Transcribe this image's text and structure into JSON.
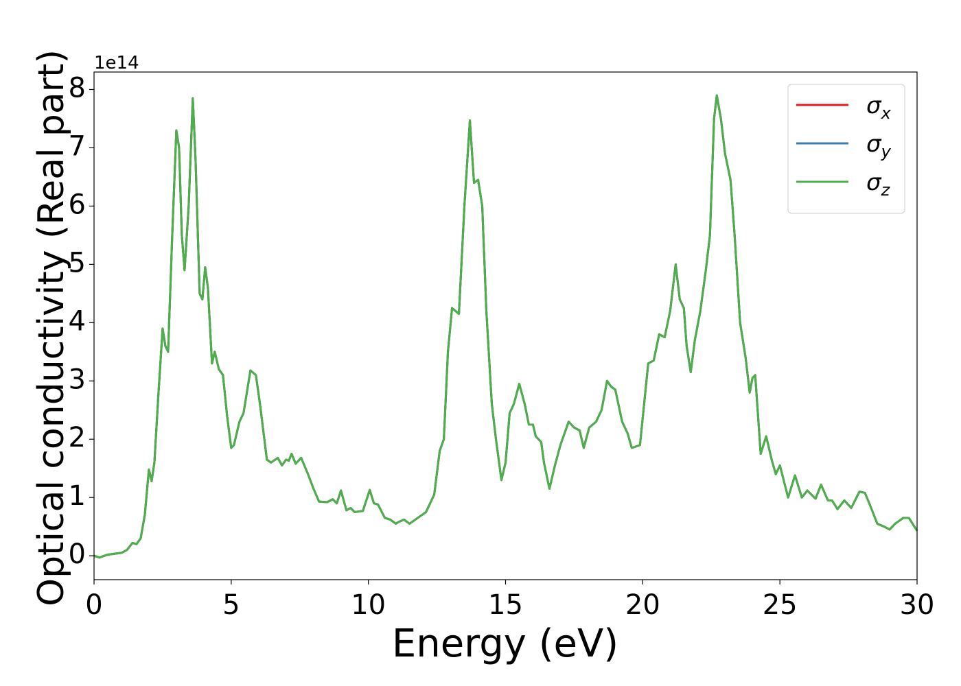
{
  "chart_data": {
    "type": "line",
    "x_label": "Energy (eV)",
    "y_label": "Optical conductivity (Real part)",
    "y_offset_text": "1e14",
    "xlim": [
      0,
      30
    ],
    "xticks": [
      0,
      5,
      10,
      15,
      20,
      25,
      30
    ],
    "ylim": [
      -0.41,
      8.3
    ],
    "yticks": [
      0,
      1,
      2,
      3,
      4,
      5,
      6,
      7,
      8
    ],
    "legend": "upper right",
    "x": [
      0.0,
      0.2,
      0.5,
      1.0,
      1.2,
      1.4,
      1.55,
      1.7,
      1.85,
      2.0,
      2.1,
      2.2,
      2.35,
      2.5,
      2.6,
      2.7,
      2.85,
      3.0,
      3.1,
      3.2,
      3.3,
      3.45,
      3.6,
      3.7,
      3.85,
      3.95,
      4.05,
      4.15,
      4.3,
      4.4,
      4.55,
      4.7,
      4.85,
      5.0,
      5.1,
      5.3,
      5.45,
      5.7,
      5.9,
      6.05,
      6.3,
      6.45,
      6.7,
      6.85,
      7.0,
      7.1,
      7.2,
      7.35,
      7.55,
      7.8,
      8.0,
      8.2,
      8.5,
      8.7,
      8.85,
      9.0,
      9.2,
      9.35,
      9.5,
      9.8,
      10.05,
      10.2,
      10.35,
      10.6,
      10.8,
      11.0,
      11.1,
      11.3,
      11.5,
      11.8,
      12.1,
      12.4,
      12.6,
      12.75,
      12.9,
      13.05,
      13.3,
      13.5,
      13.7,
      13.85,
      14.0,
      14.15,
      14.3,
      14.5,
      14.65,
      14.85,
      15.0,
      15.15,
      15.3,
      15.5,
      15.7,
      15.85,
      16.0,
      16.1,
      16.3,
      16.4,
      16.6,
      16.8,
      17.0,
      17.3,
      17.5,
      17.7,
      17.85,
      18.05,
      18.3,
      18.5,
      18.7,
      18.85,
      19.0,
      19.25,
      19.45,
      19.6,
      19.9,
      20.2,
      20.4,
      20.6,
      20.8,
      21.0,
      21.2,
      21.35,
      21.5,
      21.6,
      21.75,
      21.9,
      22.1,
      22.3,
      22.45,
      22.6,
      22.7,
      22.85,
      23.0,
      23.2,
      23.35,
      23.55,
      23.75,
      23.9,
      24.0,
      24.1,
      24.3,
      24.5,
      24.7,
      24.85,
      25.0,
      25.3,
      25.55,
      25.8,
      26.0,
      26.3,
      26.5,
      26.75,
      26.9,
      27.1,
      27.35,
      27.6,
      27.9,
      28.1,
      28.3,
      28.55,
      28.8,
      29.0,
      29.2,
      29.5,
      29.7,
      30.0
    ],
    "series": [
      {
        "name": "σx",
        "color": "#e41a1c",
        "values": [
          0.0,
          -0.03,
          0.02,
          0.05,
          0.1,
          0.22,
          0.2,
          0.3,
          0.7,
          1.48,
          1.28,
          1.6,
          2.8,
          3.9,
          3.6,
          3.5,
          5.5,
          7.3,
          7.0,
          5.5,
          4.9,
          6.0,
          7.85,
          6.8,
          4.5,
          4.4,
          4.95,
          4.6,
          3.3,
          3.5,
          3.2,
          3.1,
          2.4,
          1.85,
          1.9,
          2.3,
          2.45,
          3.18,
          3.1,
          2.6,
          1.65,
          1.6,
          1.68,
          1.55,
          1.65,
          1.63,
          1.75,
          1.58,
          1.68,
          1.4,
          1.15,
          0.93,
          0.92,
          0.97,
          0.9,
          1.12,
          0.78,
          0.82,
          0.75,
          0.77,
          1.13,
          0.9,
          0.88,
          0.65,
          0.62,
          0.55,
          0.58,
          0.62,
          0.55,
          0.65,
          0.75,
          1.05,
          1.8,
          2.0,
          3.5,
          4.25,
          4.15,
          6.0,
          7.47,
          6.4,
          6.45,
          6.0,
          4.2,
          2.6,
          2.0,
          1.3,
          1.6,
          2.45,
          2.6,
          2.95,
          2.6,
          2.25,
          2.25,
          2.05,
          1.95,
          1.6,
          1.15,
          1.55,
          1.9,
          2.3,
          2.2,
          2.15,
          1.85,
          2.2,
          2.3,
          2.5,
          3.0,
          2.9,
          2.85,
          2.3,
          2.1,
          1.85,
          1.9,
          3.3,
          3.35,
          3.8,
          3.75,
          4.2,
          5.0,
          4.4,
          4.25,
          3.6,
          3.15,
          3.7,
          4.2,
          4.9,
          5.5,
          7.5,
          7.9,
          7.5,
          6.9,
          6.45,
          5.5,
          4.0,
          3.4,
          2.8,
          3.05,
          3.1,
          1.75,
          2.05,
          1.65,
          1.4,
          1.55,
          1.0,
          1.38,
          1.0,
          1.12,
          0.98,
          1.22,
          0.95,
          0.95,
          0.8,
          0.95,
          0.82,
          1.1,
          1.08,
          0.85,
          0.55,
          0.5,
          0.45,
          0.55,
          0.65,
          0.65,
          0.43
        ]
      },
      {
        "name": "σy",
        "color": "#377eb8",
        "values": [
          0.0,
          -0.03,
          0.02,
          0.05,
          0.1,
          0.22,
          0.2,
          0.3,
          0.7,
          1.48,
          1.28,
          1.6,
          2.8,
          3.9,
          3.6,
          3.5,
          5.5,
          7.3,
          7.0,
          5.5,
          4.9,
          6.0,
          7.85,
          6.8,
          4.5,
          4.4,
          4.95,
          4.6,
          3.3,
          3.5,
          3.2,
          3.1,
          2.4,
          1.85,
          1.9,
          2.3,
          2.45,
          3.18,
          3.1,
          2.6,
          1.65,
          1.6,
          1.68,
          1.55,
          1.65,
          1.63,
          1.75,
          1.58,
          1.68,
          1.4,
          1.15,
          0.93,
          0.92,
          0.97,
          0.9,
          1.12,
          0.78,
          0.82,
          0.75,
          0.77,
          1.13,
          0.9,
          0.88,
          0.65,
          0.62,
          0.55,
          0.58,
          0.62,
          0.55,
          0.65,
          0.75,
          1.05,
          1.8,
          2.0,
          3.5,
          4.25,
          4.15,
          6.0,
          7.47,
          6.4,
          6.45,
          6.0,
          4.2,
          2.6,
          2.0,
          1.3,
          1.6,
          2.45,
          2.6,
          2.95,
          2.6,
          2.25,
          2.25,
          2.05,
          1.95,
          1.6,
          1.15,
          1.55,
          1.9,
          2.3,
          2.2,
          2.15,
          1.85,
          2.2,
          2.3,
          2.5,
          3.0,
          2.9,
          2.85,
          2.3,
          2.1,
          1.85,
          1.9,
          3.3,
          3.35,
          3.8,
          3.75,
          4.2,
          5.0,
          4.4,
          4.25,
          3.6,
          3.15,
          3.7,
          4.2,
          4.9,
          5.5,
          7.5,
          7.9,
          7.5,
          6.9,
          6.45,
          5.5,
          4.0,
          3.4,
          2.8,
          3.05,
          3.1,
          1.75,
          2.05,
          1.65,
          1.4,
          1.55,
          1.0,
          1.38,
          1.0,
          1.12,
          0.98,
          1.22,
          0.95,
          0.95,
          0.8,
          0.95,
          0.82,
          1.1,
          1.08,
          0.85,
          0.55,
          0.5,
          0.45,
          0.55,
          0.65,
          0.65,
          0.43
        ]
      },
      {
        "name": "σz",
        "color": "#4daf4a",
        "values": [
          0.0,
          -0.03,
          0.02,
          0.05,
          0.1,
          0.22,
          0.2,
          0.3,
          0.7,
          1.48,
          1.28,
          1.6,
          2.8,
          3.9,
          3.6,
          3.5,
          5.5,
          7.3,
          7.0,
          5.5,
          4.9,
          6.0,
          7.85,
          6.8,
          4.5,
          4.4,
          4.95,
          4.6,
          3.3,
          3.5,
          3.2,
          3.1,
          2.4,
          1.85,
          1.9,
          2.3,
          2.45,
          3.18,
          3.1,
          2.6,
          1.65,
          1.6,
          1.68,
          1.55,
          1.65,
          1.63,
          1.75,
          1.58,
          1.68,
          1.4,
          1.15,
          0.93,
          0.92,
          0.97,
          0.9,
          1.12,
          0.78,
          0.82,
          0.75,
          0.77,
          1.13,
          0.9,
          0.88,
          0.65,
          0.62,
          0.55,
          0.58,
          0.62,
          0.55,
          0.65,
          0.75,
          1.05,
          1.8,
          2.0,
          3.5,
          4.25,
          4.15,
          6.0,
          7.47,
          6.4,
          6.45,
          6.0,
          4.2,
          2.6,
          2.0,
          1.3,
          1.6,
          2.45,
          2.6,
          2.95,
          2.6,
          2.25,
          2.25,
          2.05,
          1.95,
          1.6,
          1.15,
          1.55,
          1.9,
          2.3,
          2.2,
          2.15,
          1.85,
          2.2,
          2.3,
          2.5,
          3.0,
          2.9,
          2.85,
          2.3,
          2.1,
          1.85,
          1.9,
          3.3,
          3.35,
          3.8,
          3.75,
          4.2,
          5.0,
          4.4,
          4.25,
          3.6,
          3.15,
          3.7,
          4.2,
          4.9,
          5.5,
          7.5,
          7.9,
          7.5,
          6.9,
          6.45,
          5.5,
          4.0,
          3.4,
          2.8,
          3.05,
          3.1,
          1.75,
          2.05,
          1.65,
          1.4,
          1.55,
          1.0,
          1.38,
          1.0,
          1.12,
          0.98,
          1.22,
          0.95,
          0.95,
          0.8,
          0.95,
          0.82,
          1.1,
          1.08,
          0.85,
          0.55,
          0.5,
          0.45,
          0.55,
          0.65,
          0.65,
          0.43
        ]
      }
    ]
  }
}
